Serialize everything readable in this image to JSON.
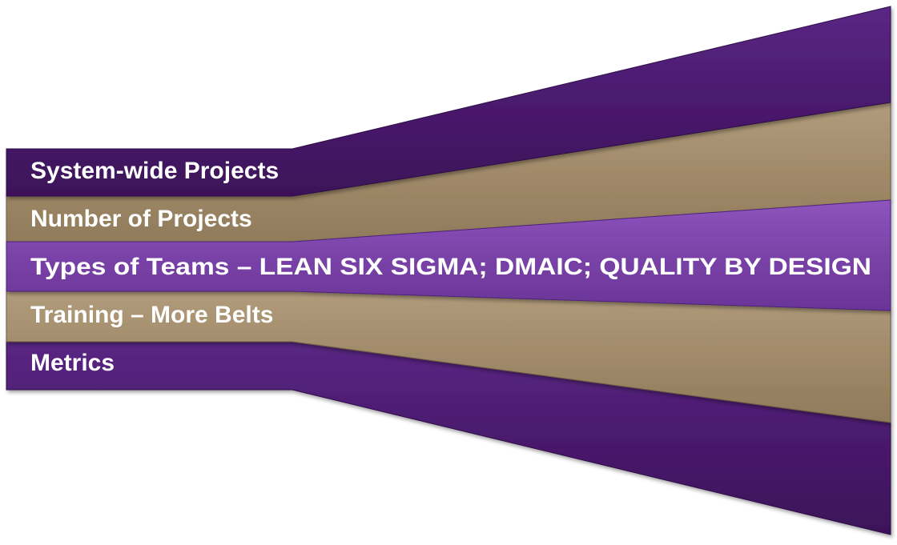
{
  "bands": [
    {
      "label": "System-wide Projects",
      "color": "purple"
    },
    {
      "label": "Number of Projects",
      "color": "tan"
    },
    {
      "label": "Types of Teams – LEAN SIX SIGMA; DMAIC; QUALITY BY DESIGN",
      "color": "purple"
    },
    {
      "label": "Training – More Belts",
      "color": "tan"
    },
    {
      "label": "Metrics",
      "color": "purple"
    }
  ],
  "colors": {
    "purple": "#4e1c72",
    "purple_light": "#7a43a8",
    "tan": "#a08a69",
    "edge": "#3a1058"
  }
}
